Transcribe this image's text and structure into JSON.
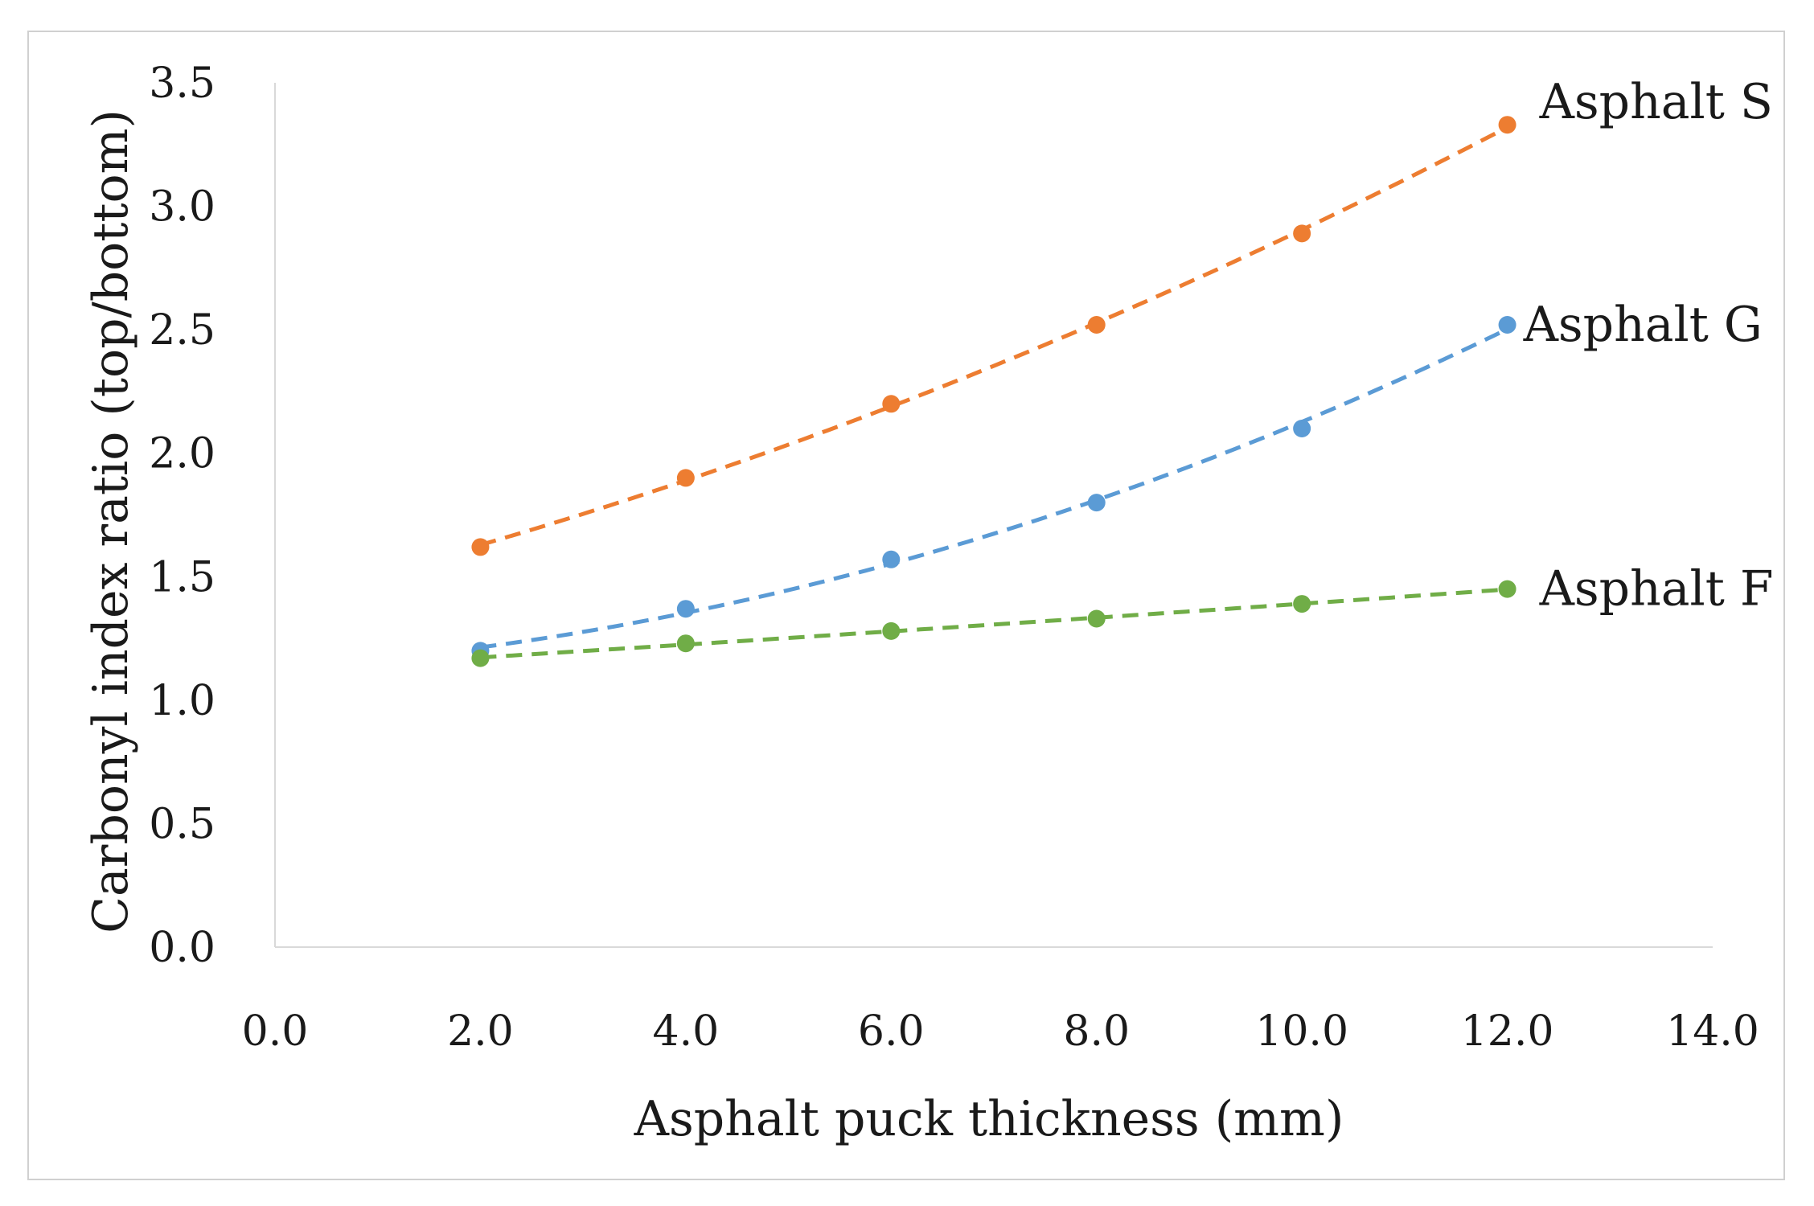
{
  "chart_data": {
    "type": "scatter",
    "title": "",
    "xlabel": "Asphalt puck thickness (mm)",
    "ylabel": "Carbonyl index ratio (top/bottom)",
    "xlim": [
      0,
      14
    ],
    "ylim": [
      0,
      3.5
    ],
    "xticks": [
      0,
      2,
      4,
      6,
      8,
      10,
      12,
      14
    ],
    "yticks": [
      0,
      0.5,
      1.0,
      1.5,
      2.0,
      2.5,
      3.0,
      3.5
    ],
    "xtick_labels": [
      "0.0",
      "2.0",
      "4.0",
      "6.0",
      "8.0",
      "10.0",
      "12.0",
      "14.0"
    ],
    "ytick_labels": [
      "0.0",
      "0.5",
      "1.0",
      "1.5",
      "2.0",
      "2.5",
      "3.0",
      "3.5"
    ],
    "grid": false,
    "legend": "none (series labeled at line ends)",
    "trendline": "polynomial, dashed",
    "series": [
      {
        "name": "Asphalt S",
        "color": "#ed7d31",
        "x": [
          2,
          4,
          6,
          8,
          10,
          12
        ],
        "values": [
          1.62,
          1.9,
          2.2,
          2.52,
          2.89,
          3.33
        ]
      },
      {
        "name": "Asphalt G",
        "color": "#5b9bd5",
        "x": [
          2,
          4,
          6,
          8,
          10,
          12
        ],
        "values": [
          1.2,
          1.37,
          1.57,
          1.8,
          2.1,
          2.52
        ]
      },
      {
        "name": "Asphalt F",
        "color": "#70ad47",
        "x": [
          2,
          4,
          6,
          8,
          10,
          12
        ],
        "values": [
          1.17,
          1.23,
          1.28,
          1.33,
          1.39,
          1.45
        ]
      }
    ]
  }
}
